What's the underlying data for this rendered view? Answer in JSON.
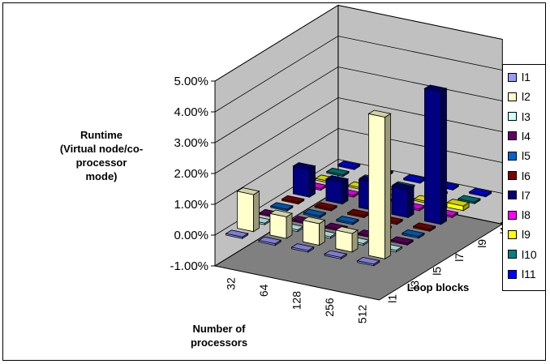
{
  "chart_data": {
    "type": "bar",
    "subtype": "3d-column",
    "zlabel": [
      "Runtime",
      "(Virtual node/co-",
      "processor",
      "mode)"
    ],
    "xlabel": [
      "Number of",
      "processors"
    ],
    "ylabel": "Loop blocks",
    "zlim": [
      -0.01,
      0.05
    ],
    "z_ticks": [
      "-1.00%",
      "0.00%",
      "1.00%",
      "2.00%",
      "3.00%",
      "4.00%",
      "5.00%"
    ],
    "processors": [
      "32",
      "64",
      "128",
      "256",
      "512"
    ],
    "depth_ticks": [
      "l1",
      "l3",
      "l5",
      "l7",
      "l9",
      "l11"
    ],
    "legend_position": "right",
    "series": [
      {
        "name": "l1",
        "color": "#9999ff",
        "values": [
          0.0005,
          0.0005,
          0.0005,
          0.0005,
          0.0005
        ]
      },
      {
        "name": "l2",
        "color": "#ffffcc",
        "values": [
          0.012,
          0.007,
          0.007,
          0.006,
          0.046
        ]
      },
      {
        "name": "l3",
        "color": "#ccffff",
        "values": [
          0.0005,
          0.0005,
          0.0005,
          0.0005,
          0.0005
        ]
      },
      {
        "name": "l4",
        "color": "#660066",
        "values": [
          0.0005,
          0.0005,
          0.0005,
          0.0005,
          0.0005
        ]
      },
      {
        "name": "l5",
        "color": "#0066cc",
        "values": [
          0.0005,
          0.0005,
          0.0005,
          0.0005,
          0.0005
        ]
      },
      {
        "name": "l6",
        "color": "#800000",
        "values": [
          0.0005,
          0.0005,
          0.0005,
          0.0005,
          0.0005
        ]
      },
      {
        "name": "l7",
        "color": "#000080",
        "values": [
          0.009,
          0.007,
          0.009,
          0.009,
          0.043
        ]
      },
      {
        "name": "l8",
        "color": "#ff00ff",
        "values": [
          0.0005,
          0.0005,
          0.0005,
          0.0005,
          0.0005
        ]
      },
      {
        "name": "l9",
        "color": "#ffff00",
        "values": [
          0.0005,
          0.0005,
          0.0005,
          0.0005,
          0.0015
        ]
      },
      {
        "name": "l10",
        "color": "#008080",
        "values": [
          0.0005,
          0.0005,
          0.0005,
          0.0005,
          0.0005
        ]
      },
      {
        "name": "l11",
        "color": "#0000ff",
        "values": [
          0.0005,
          0.0005,
          0.0005,
          0.0005,
          0.0005
        ]
      }
    ],
    "colors": {
      "back_wall": "#c0c0c0",
      "floor": "#808080",
      "gridline": "#000000"
    }
  }
}
